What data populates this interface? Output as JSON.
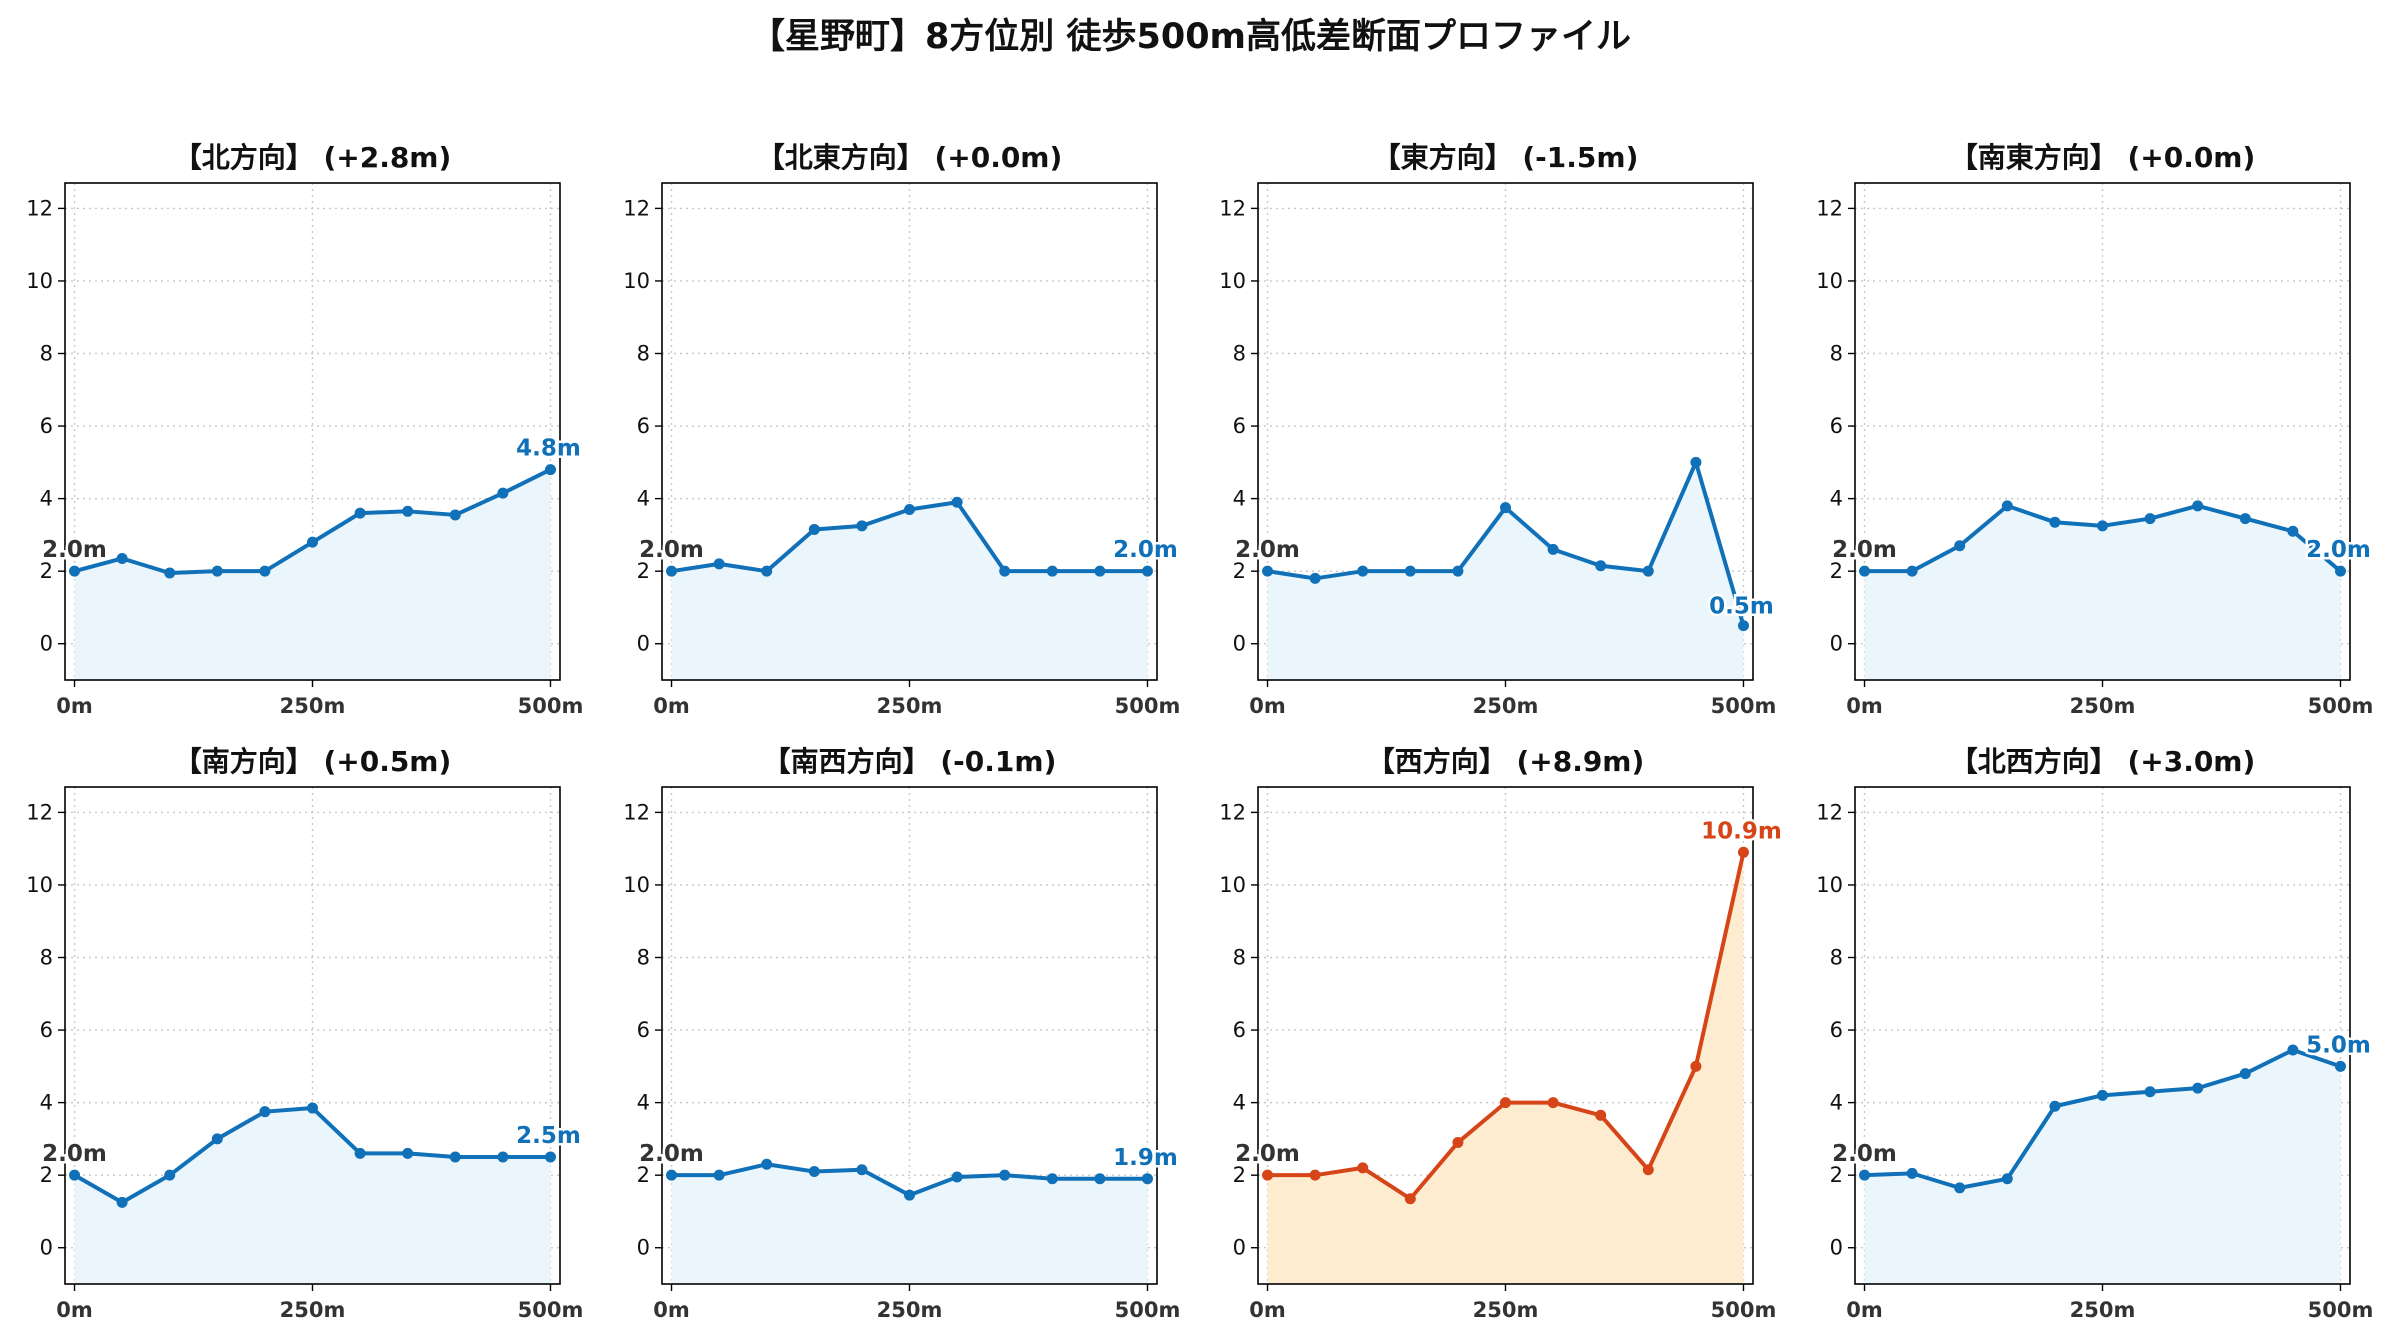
{
  "figure": {
    "title": "【星野町】8方位別 徒歩500m高低差断面プロファイル"
  },
  "colors": {
    "normal_line": "#1070b8",
    "normal_fill": "#eaf6fc",
    "highlight_line": "#d64518",
    "highlight_fill": "#feecd0",
    "start_label": "#333333",
    "grid": "#c8c8c8"
  },
  "chart_data": [
    {
      "type": "area",
      "title": "【北方向】 (+2.8m)",
      "highlight": false,
      "x": [
        0,
        50,
        100,
        150,
        200,
        250,
        300,
        350,
        400,
        450,
        500
      ],
      "y": [
        2.0,
        2.35,
        1.95,
        2.0,
        2.0,
        2.8,
        3.6,
        3.65,
        3.55,
        4.15,
        4.8
      ],
      "start_label": "2.0m",
      "end_label": "4.8m",
      "xticks": [
        "0m",
        "250m",
        "500m"
      ],
      "yticks": [
        0,
        2,
        4,
        6,
        8,
        10,
        12
      ],
      "ylim": [
        -1,
        12.7
      ],
      "xlim": [
        -10,
        510
      ],
      "grid": true
    },
    {
      "type": "area",
      "title": "【北東方向】 (+0.0m)",
      "highlight": false,
      "x": [
        0,
        50,
        100,
        150,
        200,
        250,
        300,
        350,
        400,
        450,
        500
      ],
      "y": [
        2.0,
        2.2,
        2.0,
        3.15,
        3.25,
        3.7,
        3.9,
        2.0,
        2.0,
        2.0,
        2.0
      ],
      "start_label": "2.0m",
      "end_label": "2.0m",
      "xticks": [
        "0m",
        "250m",
        "500m"
      ],
      "yticks": [
        0,
        2,
        4,
        6,
        8,
        10,
        12
      ],
      "ylim": [
        -1,
        12.7
      ],
      "xlim": [
        -10,
        510
      ],
      "grid": true
    },
    {
      "type": "area",
      "title": "【東方向】 (-1.5m)",
      "highlight": false,
      "x": [
        0,
        50,
        100,
        150,
        200,
        250,
        300,
        350,
        400,
        450,
        500
      ],
      "y": [
        2.0,
        1.8,
        2.0,
        2.0,
        2.0,
        3.75,
        2.6,
        2.15,
        2.0,
        5.0,
        0.5
      ],
      "start_label": "2.0m",
      "end_label": "0.5m",
      "xticks": [
        "0m",
        "250m",
        "500m"
      ],
      "yticks": [
        0,
        2,
        4,
        6,
        8,
        10,
        12
      ],
      "ylim": [
        -1,
        12.7
      ],
      "xlim": [
        -10,
        510
      ],
      "grid": true
    },
    {
      "type": "area",
      "title": "【南東方向】 (+0.0m)",
      "highlight": false,
      "x": [
        0,
        50,
        100,
        150,
        200,
        250,
        300,
        350,
        400,
        450,
        500
      ],
      "y": [
        2.0,
        2.0,
        2.7,
        3.8,
        3.35,
        3.25,
        3.45,
        3.8,
        3.45,
        3.1,
        2.0
      ],
      "start_label": "2.0m",
      "end_label": "2.0m",
      "xticks": [
        "0m",
        "250m",
        "500m"
      ],
      "yticks": [
        0,
        2,
        4,
        6,
        8,
        10,
        12
      ],
      "ylim": [
        -1,
        12.7
      ],
      "xlim": [
        -10,
        510
      ],
      "grid": true
    },
    {
      "type": "area",
      "title": "【南方向】 (+0.5m)",
      "highlight": false,
      "x": [
        0,
        50,
        100,
        150,
        200,
        250,
        300,
        350,
        400,
        450,
        500
      ],
      "y": [
        2.0,
        1.25,
        2.0,
        3.0,
        3.75,
        3.85,
        2.6,
        2.6,
        2.5,
        2.5,
        2.5
      ],
      "start_label": "2.0m",
      "end_label": "2.5m",
      "xticks": [
        "0m",
        "250m",
        "500m"
      ],
      "yticks": [
        0,
        2,
        4,
        6,
        8,
        10,
        12
      ],
      "ylim": [
        -1,
        12.7
      ],
      "xlim": [
        -10,
        510
      ],
      "grid": true
    },
    {
      "type": "area",
      "title": "【南西方向】 (-0.1m)",
      "highlight": false,
      "x": [
        0,
        50,
        100,
        150,
        200,
        250,
        300,
        350,
        400,
        450,
        500
      ],
      "y": [
        2.0,
        2.0,
        2.3,
        2.1,
        2.15,
        1.45,
        1.95,
        2.0,
        1.9,
        1.9,
        1.9
      ],
      "start_label": "2.0m",
      "end_label": "1.9m",
      "xticks": [
        "0m",
        "250m",
        "500m"
      ],
      "yticks": [
        0,
        2,
        4,
        6,
        8,
        10,
        12
      ],
      "ylim": [
        -1,
        12.7
      ],
      "xlim": [
        -10,
        510
      ],
      "grid": true
    },
    {
      "type": "area",
      "title": "【西方向】 (+8.9m)",
      "highlight": true,
      "x": [
        0,
        50,
        100,
        150,
        200,
        250,
        300,
        350,
        400,
        450,
        500
      ],
      "y": [
        2.0,
        2.0,
        2.2,
        1.35,
        2.9,
        4.0,
        4.0,
        3.65,
        2.15,
        5.0,
        10.9
      ],
      "start_label": "2.0m",
      "end_label": "10.9m",
      "xticks": [
        "0m",
        "250m",
        "500m"
      ],
      "yticks": [
        0,
        2,
        4,
        6,
        8,
        10,
        12
      ],
      "ylim": [
        -1,
        12.7
      ],
      "xlim": [
        -10,
        510
      ],
      "grid": true
    },
    {
      "type": "area",
      "title": "【北西方向】 (+3.0m)",
      "highlight": false,
      "x": [
        0,
        50,
        100,
        150,
        200,
        250,
        300,
        350,
        400,
        450,
        500
      ],
      "y": [
        2.0,
        2.05,
        1.65,
        1.9,
        3.9,
        4.2,
        4.3,
        4.4,
        4.8,
        5.45,
        5.0
      ],
      "start_label": "2.0m",
      "end_label": "5.0m",
      "xticks": [
        "0m",
        "250m",
        "500m"
      ],
      "yticks": [
        0,
        2,
        4,
        6,
        8,
        10,
        12
      ],
      "ylim": [
        -1,
        12.7
      ],
      "xlim": [
        -10,
        510
      ],
      "grid": true
    }
  ]
}
